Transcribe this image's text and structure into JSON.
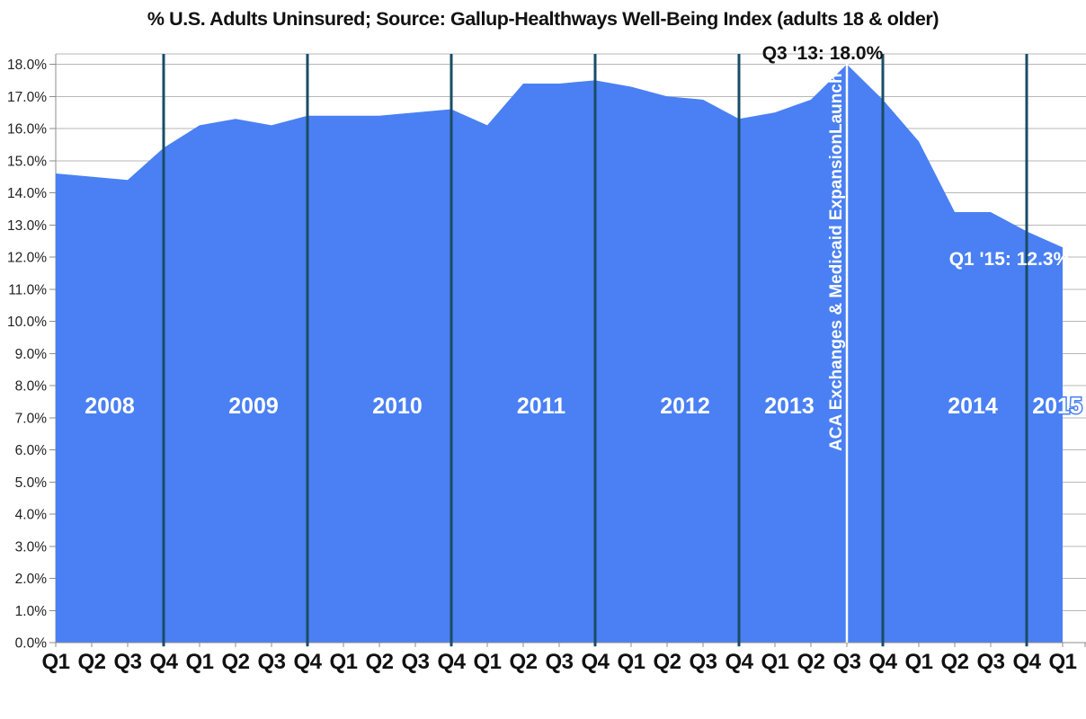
{
  "title": "% U.S. Adults Uninsured; Source: Gallup-Healthways Well-Being Index (adults 18 & older)",
  "chart_data": {
    "type": "area",
    "title": "% U.S. Adults Uninsured; Source: Gallup-Healthways Well-Being Index (adults 18 & older)",
    "x_labels": [
      "Q1",
      "Q2",
      "Q3",
      "Q4",
      "Q1",
      "Q2",
      "Q3",
      "Q4",
      "Q1",
      "Q2",
      "Q3",
      "Q4",
      "Q1",
      "Q2",
      "Q3",
      "Q4",
      "Q1",
      "Q2",
      "Q3",
      "Q4",
      "Q1",
      "Q2",
      "Q3",
      "Q4",
      "Q1",
      "Q2",
      "Q3",
      "Q4",
      "Q1"
    ],
    "values": [
      14.6,
      14.5,
      14.4,
      15.4,
      16.1,
      16.3,
      16.1,
      16.4,
      16.4,
      16.4,
      16.5,
      16.6,
      16.1,
      17.4,
      17.4,
      17.5,
      17.3,
      17.0,
      16.9,
      16.3,
      16.5,
      16.9,
      18.0,
      16.9,
      15.6,
      13.4,
      13.4,
      12.8,
      12.3
    ],
    "ylim": [
      0,
      18
    ],
    "ytick_step": 1,
    "ytick_suffix": "%",
    "grid": true,
    "year_bands": [
      {
        "label": "2008",
        "from": 0,
        "to": 3
      },
      {
        "label": "2009",
        "from": 4,
        "to": 7
      },
      {
        "label": "2010",
        "from": 8,
        "to": 11
      },
      {
        "label": "2011",
        "from": 12,
        "to": 15
      },
      {
        "label": "2012",
        "from": 16,
        "to": 19
      },
      {
        "label": "2013",
        "from": 20,
        "to": 23
      },
      {
        "label": "2014",
        "from": 24,
        "to": 27
      },
      {
        "label": "2015",
        "from": 28,
        "to": 28
      }
    ],
    "year_separator_indices": [
      3,
      7,
      11,
      15,
      19,
      23,
      27
    ],
    "event_line": {
      "index": 22,
      "label": "ACA Exchanges & Medicaid ExpansionLaunch"
    },
    "annotations": [
      {
        "id": "peak",
        "index": 22,
        "text": "Q3 '13: 18.0%",
        "color": "#111111"
      },
      {
        "id": "latest",
        "index": 28,
        "text": "Q1 '15: 12.3%",
        "color": "#ffffff"
      }
    ],
    "colors": {
      "area": "#4a80f3",
      "separator": "#1a4c66",
      "event_line": "#ffffff",
      "grid": "#b7b7b7",
      "axis": "#8c8c8c",
      "tick_text": "#222222",
      "year_label": "#ffffff"
    }
  }
}
